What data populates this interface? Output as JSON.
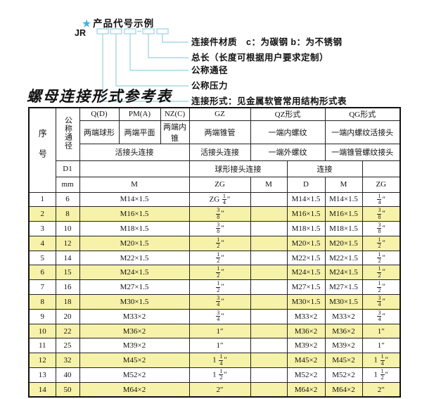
{
  "diagram": {
    "star": "★",
    "heading": "产品代号示例",
    "prefix": "JR",
    "labels": [
      "连接件材质　c：为碳钢  b：为不锈钢",
      "总长（长度可根据用户要求定制）",
      "公称通径",
      "公称压力",
      "连接形式：见金属软管常用结构形式表"
    ]
  },
  "colors": {
    "leader_line": "#a6d9e6",
    "header_bg": "#b2d7ee",
    "alt_row_bg": "#f7f2a9",
    "star": "#3cb4e0"
  },
  "table": {
    "title": "螺母连接形式参考表",
    "header": {
      "seq": "序号",
      "dn": "公称通径",
      "d1": "D1",
      "mm": "mm",
      "q_code": "Q(D)",
      "q_desc": "两端球形",
      "pm_code": "PM(A)",
      "pm_desc": "两端平面",
      "nz_code": "NZ(C)",
      "nz_desc": "两端内锥",
      "gz_code": "GZ",
      "gz_desc": "两端锥管",
      "union_qpn": "活接头连接",
      "union_gz": "活接头连接",
      "qz_code": "QZ形式",
      "qz_r2": "一端内螺纹",
      "qz_r3": "一端外螺纹",
      "qz_r4": "球形接头连接",
      "qg_code": "QG形式",
      "qg_r2": "一端内螺纹活接头",
      "qg_r3": "一端锥管螺纹接头",
      "qg_r4": "连接",
      "m_all": "M",
      "gz_zg": "ZG",
      "qz_m": "M",
      "qz_d": "D",
      "qg_m": "M",
      "qg_zg": "ZG"
    },
    "rows": [
      {
        "no": "1",
        "dn": "6",
        "m": "M14×1.5",
        "gz": "ZG 1/4″",
        "qz_m": "",
        "qz_d": "M14×1.5",
        "qg_m": "M14×1.5",
        "qg_zg": "1/4″"
      },
      {
        "no": "2",
        "dn": "8",
        "m": "M16×1.5",
        "gz": "3/8″",
        "qz_m": "",
        "qz_d": "M16×1.5",
        "qg_m": "M16×1.5",
        "qg_zg": "3/8″"
      },
      {
        "no": "3",
        "dn": "10",
        "m": "M18×1.5",
        "gz": "3/8″",
        "qz_m": "",
        "qz_d": "M18×1.5",
        "qg_m": "M18×1.5",
        "qg_zg": "3/8″"
      },
      {
        "no": "4",
        "dn": "12",
        "m": "M20×1.5",
        "gz": "1/2″",
        "qz_m": "",
        "qz_d": "M20×1.5",
        "qg_m": "M20×1.5",
        "qg_zg": "1/2″"
      },
      {
        "no": "5",
        "dn": "14",
        "m": "M22×1.5",
        "gz": "1/2″",
        "qz_m": "",
        "qz_d": "M22×1.5",
        "qg_m": "M22×1.5",
        "qg_zg": "1/2″"
      },
      {
        "no": "6",
        "dn": "15",
        "m": "M24×1.5",
        "gz": "1/2″",
        "qz_m": "",
        "qz_d": "M24×1.5",
        "qg_m": "M24×1.5",
        "qg_zg": "1/2″"
      },
      {
        "no": "7",
        "dn": "16",
        "m": "M27×1.5",
        "gz": "1/2″",
        "qz_m": "",
        "qz_d": "M27×1.5",
        "qg_m": "M27×1.5",
        "qg_zg": "1/2″"
      },
      {
        "no": "8",
        "dn": "18",
        "m": "M30×1.5",
        "gz": "3/4″",
        "qz_m": "",
        "qz_d": "M30×1.5",
        "qg_m": "M30×1.5",
        "qg_zg": "3/4″"
      },
      {
        "no": "9",
        "dn": "20",
        "m": "M33×2",
        "gz": "3/4″",
        "qz_m": "",
        "qz_d": "M33×2",
        "qg_m": "M33×2",
        "qg_zg": "3/4″"
      },
      {
        "no": "10",
        "dn": "22",
        "m": "M36×2",
        "gz": "1″",
        "qz_m": "",
        "qz_d": "M36×2",
        "qg_m": "M36×2",
        "qg_zg": "1″"
      },
      {
        "no": "11",
        "dn": "25",
        "m": "M39×2",
        "gz": "1″",
        "qz_m": "",
        "qz_d": "M39×2",
        "qg_m": "M39×2",
        "qg_zg": "1″"
      },
      {
        "no": "12",
        "dn": "32",
        "m": "M45×2",
        "gz": "1 1/4″",
        "qz_m": "",
        "qz_d": "M45×2",
        "qg_m": "M45×2",
        "qg_zg": "1 1/4″"
      },
      {
        "no": "13",
        "dn": "40",
        "m": "M52×2",
        "gz": "1 1/2″",
        "qz_m": "",
        "qz_d": "M52×2",
        "qg_m": "M52×2",
        "qg_zg": "1 1/2″"
      },
      {
        "no": "14",
        "dn": "50",
        "m": "M64×2",
        "gz": "2″",
        "qz_m": "",
        "qz_d": "M64×2",
        "qg_m": "M64×2",
        "qg_zg": "2″"
      }
    ]
  }
}
